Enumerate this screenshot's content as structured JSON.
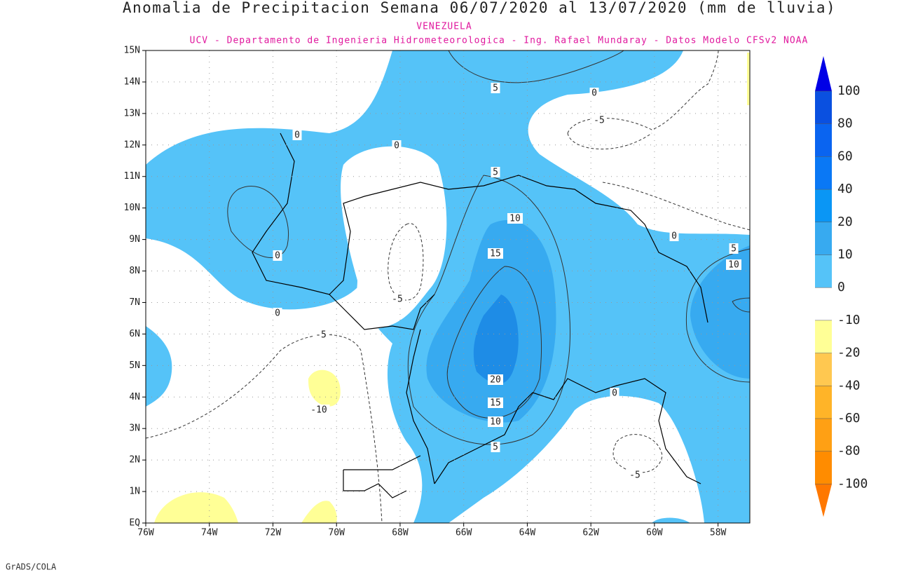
{
  "header": {
    "title": "Anomalia de Precipitacion Semana 06/07/2020 al 13/07/2020 (mm de lluvia)",
    "region": "VENEZUELA",
    "credit": "UCV - Departamento de Ingenieria Hidrometeorologica - Ing. Rafael Mundaray - Datos Modelo CFSv2 NOAA"
  },
  "map": {
    "lat_labels": [
      "15N",
      "14N",
      "13N",
      "12N",
      "11N",
      "10N",
      "9N",
      "8N",
      "7N",
      "6N",
      "5N",
      "4N",
      "3N",
      "2N",
      "1N",
      "EQ"
    ],
    "lon_labels": [
      "76W",
      "74W",
      "72W",
      "70W",
      "68W",
      "66W",
      "64W",
      "62W",
      "60W",
      "58W"
    ],
    "contour_labels": [
      "5",
      "0",
      "-5",
      "0",
      "0",
      "5",
      "10",
      "0",
      "5",
      "10",
      "15",
      "0",
      "0",
      "-5",
      "-5",
      "20",
      "15",
      "10",
      "-10",
      "0",
      "5",
      "-5"
    ]
  },
  "colorbar": {
    "labels": [
      "100",
      "80",
      "60",
      "40",
      "20",
      "10",
      "0",
      "-10",
      "-20",
      "-40",
      "-60",
      "-80",
      "-100"
    ]
  },
  "footer": "GrADS/COLA"
}
